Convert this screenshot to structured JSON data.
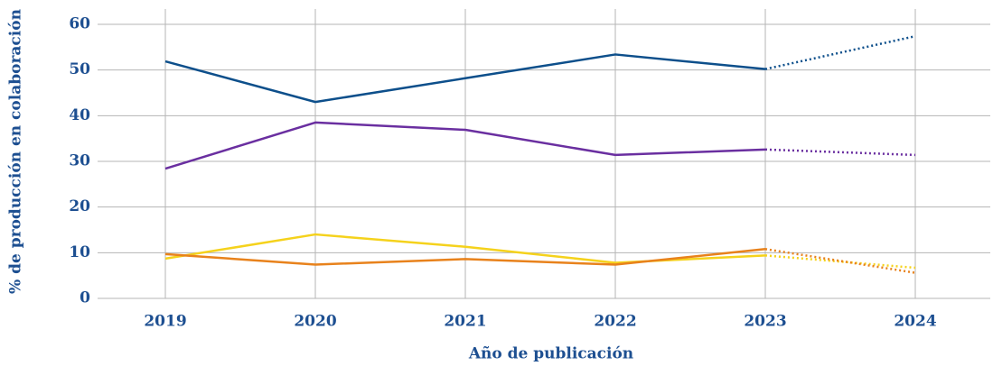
{
  "chart_data": {
    "type": "line",
    "y_label": "% de producción en colaboración",
    "x_label": "Año de publicación",
    "categories": [
      "2019",
      "2020",
      "2021",
      "2022",
      "2023",
      "2024"
    ],
    "series": [
      {
        "color": "#0d4f8b",
        "values": [
          51.9,
          43,
          48.2,
          53.4,
          50.2,
          57.4
        ]
      },
      {
        "color": "#6a2fa0",
        "values": [
          28.4,
          38.5,
          36.9,
          31.4,
          32.6,
          31.4
        ]
      },
      {
        "color": "#f5d21c",
        "values": [
          8.7,
          14,
          11.3,
          7.8,
          9.4,
          6.7
        ]
      },
      {
        "color": "#e8821c",
        "values": [
          9.7,
          7.4,
          8.6,
          7.4,
          10.8,
          5.6
        ]
      }
    ],
    "dotted_last_segment": true,
    "ylim": [
      0,
      60
    ],
    "yticks": [
      0,
      10,
      20,
      30,
      40,
      50,
      60
    ],
    "grid": true
  }
}
